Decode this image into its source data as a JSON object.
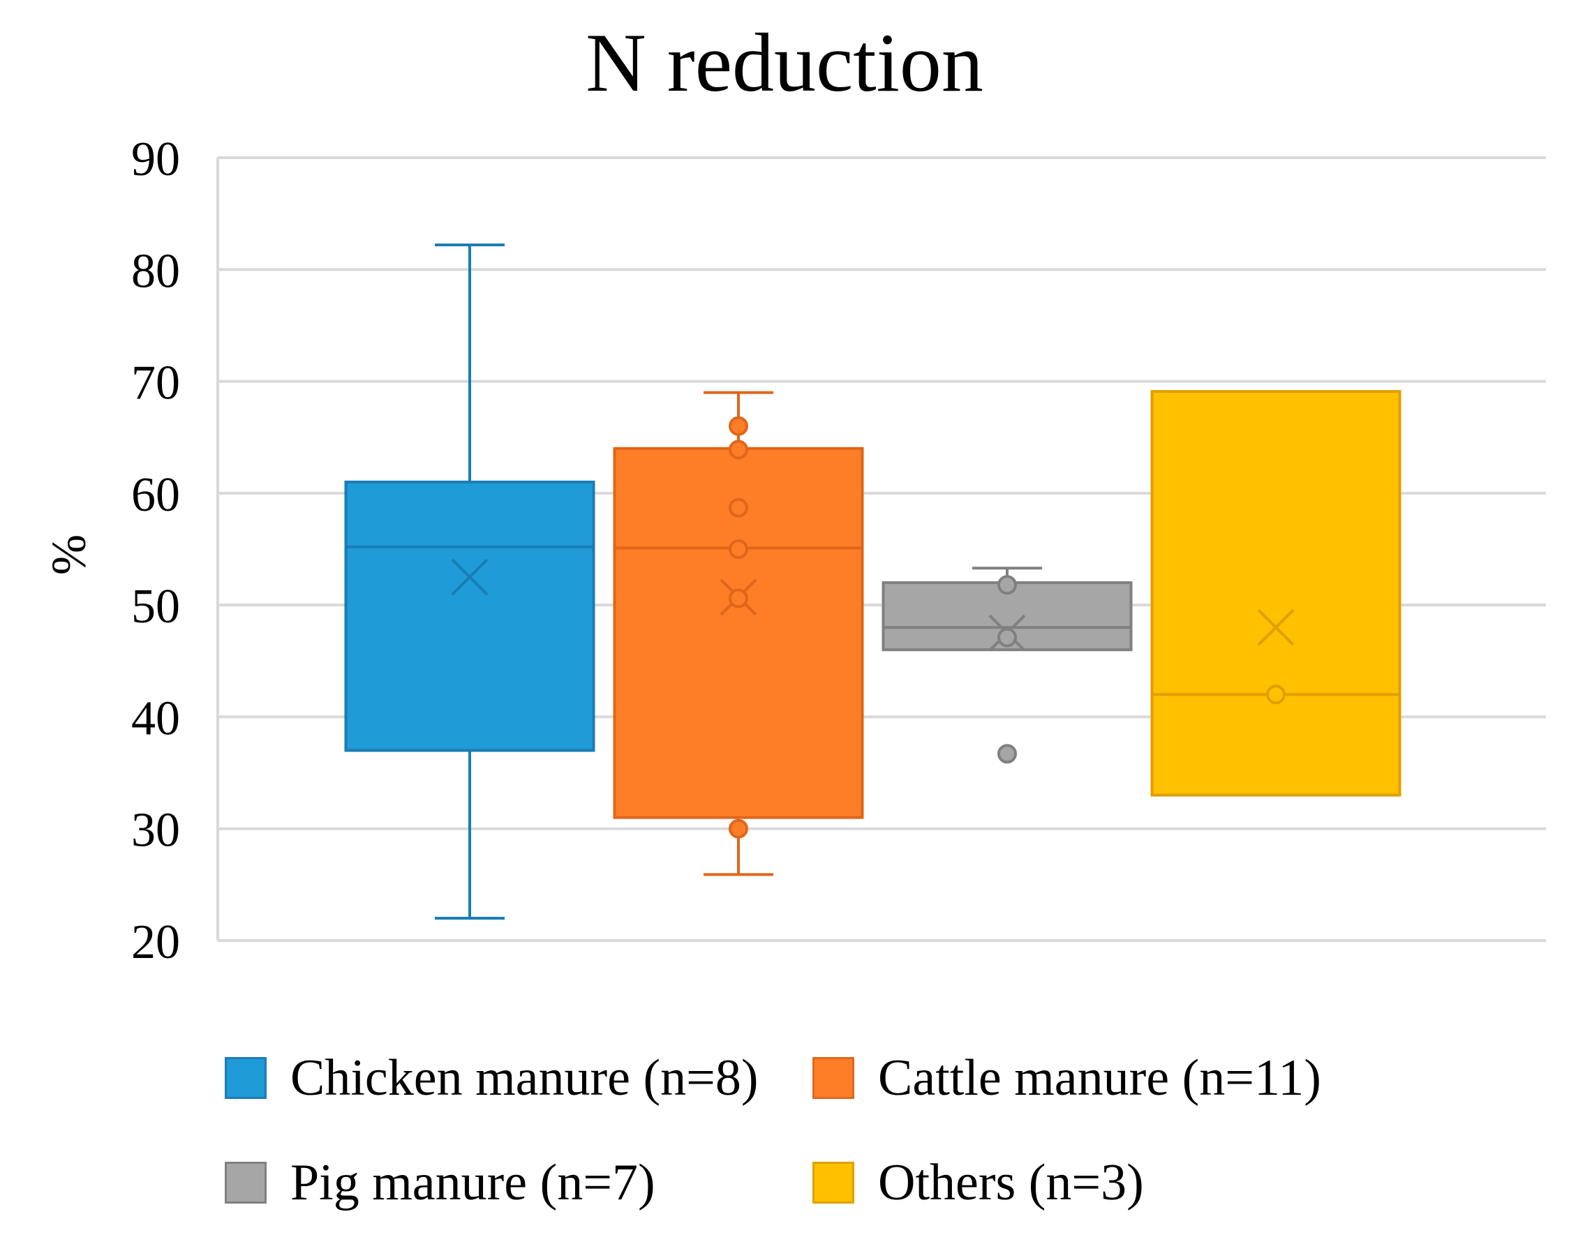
{
  "chart_data": {
    "type": "box",
    "title": "N reduction",
    "ylabel": "%",
    "xlabel": "",
    "ylim": [
      20,
      90
    ],
    "yticks": [
      20,
      30,
      40,
      50,
      60,
      70,
      80,
      90
    ],
    "grid": true,
    "legend_position": "bottom",
    "series": [
      {
        "name": "Chicken manure (n=8)",
        "color": "#1f9bd7",
        "stroke": "#1a7db5",
        "min": 22,
        "q1": 37,
        "median": 55.2,
        "q3": 61,
        "max": 82.2,
        "mean": 52.5,
        "points": []
      },
      {
        "name": "Cattle manure (n=11)",
        "color": "#fd7e27",
        "stroke": "#e0661a",
        "min": 25.9,
        "q1": 31,
        "median": 55.1,
        "q3": 64,
        "max": 69,
        "mean": 50.7,
        "points": [
          66,
          63.9,
          58.7,
          55,
          50.6,
          30
        ]
      },
      {
        "name": "Pig manure (n=7)",
        "color": "#a6a6a6",
        "stroke": "#808080",
        "min": 46,
        "q1": 46,
        "median": 48,
        "q3": 52,
        "max": 53.3,
        "mean": 47.5,
        "points": [
          51.8,
          47.1
        ],
        "outliers": [
          36.7
        ]
      },
      {
        "name": "Others (n=3)",
        "color": "#ffc000",
        "stroke": "#e0a000",
        "min": 33,
        "q1": 33,
        "median": 42,
        "q3": 69.1,
        "max": 69.1,
        "mean": 48,
        "points": [
          42
        ]
      }
    ]
  }
}
